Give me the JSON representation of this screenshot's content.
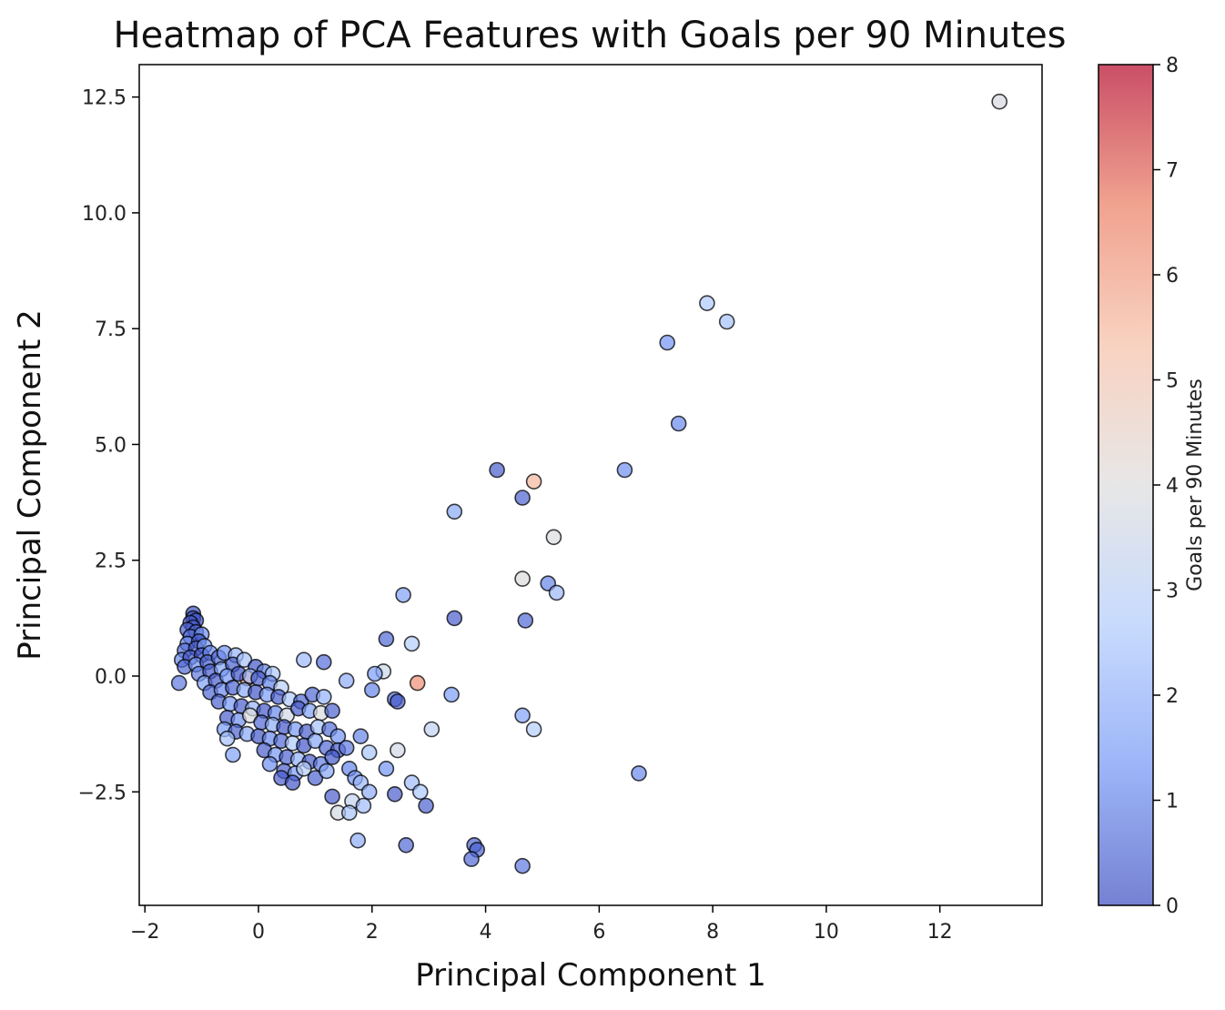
{
  "chart_data": {
    "type": "scatter",
    "title": "Heatmap of PCA Features with Goals per 90 Minutes",
    "xlabel": "Principal Component 1",
    "ylabel": "Principal Component 2",
    "xlim": [
      -2.1,
      13.8
    ],
    "ylim": [
      -4.95,
      13.2
    ],
    "xticks": [
      -2,
      0,
      2,
      4,
      6,
      8,
      10,
      12
    ],
    "xtick_labels": [
      "−2",
      "0",
      "2",
      "4",
      "6",
      "8",
      "10",
      "12"
    ],
    "yticks": [
      -2.5,
      0,
      2.5,
      5,
      7.5,
      10,
      12.5
    ],
    "ytick_labels": [
      "−2.5",
      "0.0",
      "2.5",
      "5.0",
      "7.5",
      "10.0",
      "12.5"
    ],
    "grid": false,
    "colorbar": {
      "label": "Goals per 90 Minutes",
      "range": [
        0,
        8
      ],
      "ticks": [
        0,
        1,
        2,
        3,
        4,
        5,
        6,
        7,
        8
      ],
      "colormap": "coolwarm",
      "stops": [
        "#3b4cc0",
        "#7396f5",
        "#b0cbfc",
        "#dddcdc",
        "#f6bfa6",
        "#ea7b60",
        "#b40426"
      ]
    },
    "marker": {
      "edge_color": "#000000",
      "alpha": 0.7
    },
    "points": [
      {
        "x": 13.05,
        "y": 12.4,
        "c": 3.8
      },
      {
        "x": 7.9,
        "y": 8.05,
        "c": 2.6
      },
      {
        "x": 8.25,
        "y": 7.65,
        "c": 2.4
      },
      {
        "x": 7.2,
        "y": 7.2,
        "c": 1.3
      },
      {
        "x": 7.4,
        "y": 5.45,
        "c": 1.1
      },
      {
        "x": 6.45,
        "y": 4.45,
        "c": 1.2
      },
      {
        "x": 4.85,
        "y": 4.2,
        "c": 5.5
      },
      {
        "x": 4.2,
        "y": 4.45,
        "c": 0.3
      },
      {
        "x": 4.65,
        "y": 3.85,
        "c": 0.4
      },
      {
        "x": 3.45,
        "y": 3.55,
        "c": 1.8
      },
      {
        "x": 5.2,
        "y": 3.0,
        "c": 3.9
      },
      {
        "x": 4.65,
        "y": 2.1,
        "c": 4.0
      },
      {
        "x": 5.1,
        "y": 2.0,
        "c": 1.0
      },
      {
        "x": 5.25,
        "y": 1.8,
        "c": 2.2
      },
      {
        "x": 2.55,
        "y": 1.75,
        "c": 1.6
      },
      {
        "x": 3.45,
        "y": 1.25,
        "c": 0.3
      },
      {
        "x": 4.7,
        "y": 1.2,
        "c": 0.5
      },
      {
        "x": 2.25,
        "y": 0.8,
        "c": 0.5
      },
      {
        "x": 2.7,
        "y": 0.7,
        "c": 2.8
      },
      {
        "x": 0.8,
        "y": 0.35,
        "c": 2.2
      },
      {
        "x": 1.15,
        "y": 0.3,
        "c": 0.6
      },
      {
        "x": 2.2,
        "y": 0.1,
        "c": 3.5
      },
      {
        "x": 2.05,
        "y": 0.05,
        "c": 1.5
      },
      {
        "x": 1.55,
        "y": -0.1,
        "c": 1.9
      },
      {
        "x": 2.8,
        "y": -0.15,
        "c": 6.3
      },
      {
        "x": -0.2,
        "y": -0.05,
        "c": 6.0
      },
      {
        "x": 2.0,
        "y": -0.3,
        "c": 1.0
      },
      {
        "x": 2.4,
        "y": -0.5,
        "c": 0.5
      },
      {
        "x": 2.45,
        "y": -0.55,
        "c": 0.3
      },
      {
        "x": 3.4,
        "y": -0.4,
        "c": 1.5
      },
      {
        "x": 4.65,
        "y": -0.85,
        "c": 1.6
      },
      {
        "x": 4.85,
        "y": -1.15,
        "c": 2.8
      },
      {
        "x": 3.05,
        "y": -1.15,
        "c": 3.1
      },
      {
        "x": 2.45,
        "y": -1.6,
        "c": 3.6
      },
      {
        "x": 1.8,
        "y": -1.3,
        "c": 1.0
      },
      {
        "x": 1.95,
        "y": -1.65,
        "c": 2.5
      },
      {
        "x": 2.25,
        "y": -2.0,
        "c": 1.3
      },
      {
        "x": 2.7,
        "y": -2.3,
        "c": 2.3
      },
      {
        "x": 2.85,
        "y": -2.5,
        "c": 2.6
      },
      {
        "x": 2.95,
        "y": -2.8,
        "c": 0.4
      },
      {
        "x": 2.4,
        "y": -2.55,
        "c": 0.3
      },
      {
        "x": 1.6,
        "y": -2.0,
        "c": 1.0
      },
      {
        "x": 1.7,
        "y": -2.2,
        "c": 1.2
      },
      {
        "x": 1.8,
        "y": -2.3,
        "c": 2.2
      },
      {
        "x": 1.95,
        "y": -2.5,
        "c": 1.9
      },
      {
        "x": 1.65,
        "y": -2.7,
        "c": 3.2
      },
      {
        "x": 1.85,
        "y": -2.8,
        "c": 2.3
      },
      {
        "x": 1.4,
        "y": -2.95,
        "c": 3.7
      },
      {
        "x": 1.6,
        "y": -2.95,
        "c": 2.5
      },
      {
        "x": 1.3,
        "y": -2.6,
        "c": 0.3
      },
      {
        "x": 1.75,
        "y": -3.55,
        "c": 1.9
      },
      {
        "x": 2.6,
        "y": -3.65,
        "c": 0.5
      },
      {
        "x": 3.8,
        "y": -3.65,
        "c": 0.4
      },
      {
        "x": 3.85,
        "y": -3.75,
        "c": 0.4
      },
      {
        "x": 3.75,
        "y": -3.95,
        "c": 0.5
      },
      {
        "x": 4.65,
        "y": -4.1,
        "c": 0.8
      },
      {
        "x": 6.7,
        "y": -2.1,
        "c": 1.1
      },
      {
        "x": -0.45,
        "y": -1.7,
        "c": 1.6
      },
      {
        "x": -1.4,
        "y": -0.15,
        "c": 0.8
      },
      {
        "x": -1.15,
        "y": 1.35,
        "c": 0.1
      },
      {
        "x": -1.15,
        "y": 1.25,
        "c": 0.1
      },
      {
        "x": -1.1,
        "y": 1.2,
        "c": 0.2
      },
      {
        "x": -1.2,
        "y": 1.15,
        "c": 0.2
      },
      {
        "x": -1.15,
        "y": 1.05,
        "c": 0.3
      },
      {
        "x": -1.25,
        "y": 1.0,
        "c": 0.4
      },
      {
        "x": -1.1,
        "y": 0.95,
        "c": 0.5
      },
      {
        "x": -1.2,
        "y": 0.85,
        "c": 0.6
      },
      {
        "x": -1.0,
        "y": 0.9,
        "c": 1.2
      },
      {
        "x": -1.25,
        "y": 0.7,
        "c": 1.0
      },
      {
        "x": -1.05,
        "y": 0.75,
        "c": 0.2
      },
      {
        "x": -1.3,
        "y": 0.55,
        "c": 0.6
      },
      {
        "x": -1.1,
        "y": 0.6,
        "c": 0.3
      },
      {
        "x": -0.95,
        "y": 0.65,
        "c": 1.4
      },
      {
        "x": -1.35,
        "y": 0.35,
        "c": 1.0
      },
      {
        "x": -1.2,
        "y": 0.4,
        "c": 0.3
      },
      {
        "x": -1.0,
        "y": 0.45,
        "c": 0.2
      },
      {
        "x": -0.85,
        "y": 0.5,
        "c": 1.1
      },
      {
        "x": -1.3,
        "y": 0.2,
        "c": 0.5
      },
      {
        "x": -1.1,
        "y": 0.25,
        "c": 1.3
      },
      {
        "x": -0.9,
        "y": 0.3,
        "c": 0.4
      },
      {
        "x": -0.7,
        "y": 0.4,
        "c": 0.5
      },
      {
        "x": -0.6,
        "y": 0.5,
        "c": 1.3
      },
      {
        "x": -0.4,
        "y": 0.45,
        "c": 2.1
      },
      {
        "x": -1.05,
        "y": 0.05,
        "c": 0.8
      },
      {
        "x": -0.85,
        "y": 0.1,
        "c": 0.3
      },
      {
        "x": -0.65,
        "y": 0.15,
        "c": 1.6
      },
      {
        "x": -0.45,
        "y": 0.25,
        "c": 0.4
      },
      {
        "x": -0.25,
        "y": 0.35,
        "c": 2.4
      },
      {
        "x": -0.05,
        "y": 0.2,
        "c": 0.2
      },
      {
        "x": 0.1,
        "y": 0.1,
        "c": 1.0
      },
      {
        "x": 0.25,
        "y": 0.05,
        "c": 2.6
      },
      {
        "x": -0.95,
        "y": -0.15,
        "c": 1.6
      },
      {
        "x": -0.75,
        "y": -0.1,
        "c": 0.3
      },
      {
        "x": -0.55,
        "y": 0.0,
        "c": 1.4
      },
      {
        "x": -0.35,
        "y": 0.05,
        "c": 0.1
      },
      {
        "x": -0.15,
        "y": 0.0,
        "c": 2.3
      },
      {
        "x": 0.0,
        "y": -0.05,
        "c": 0.3
      },
      {
        "x": 0.2,
        "y": -0.15,
        "c": 1.0
      },
      {
        "x": 0.4,
        "y": -0.25,
        "c": 2.9
      },
      {
        "x": -0.85,
        "y": -0.35,
        "c": 0.5
      },
      {
        "x": -0.65,
        "y": -0.3,
        "c": 1.1
      },
      {
        "x": -0.45,
        "y": -0.25,
        "c": 0.4
      },
      {
        "x": -0.25,
        "y": -0.3,
        "c": 1.8
      },
      {
        "x": -0.05,
        "y": -0.35,
        "c": 0.2
      },
      {
        "x": 0.15,
        "y": -0.4,
        "c": 1.5
      },
      {
        "x": 0.35,
        "y": -0.45,
        "c": 0.3
      },
      {
        "x": 0.55,
        "y": -0.5,
        "c": 2.6
      },
      {
        "x": 0.75,
        "y": -0.55,
        "c": 0.5
      },
      {
        "x": 0.95,
        "y": -0.4,
        "c": 0.5
      },
      {
        "x": 1.15,
        "y": -0.45,
        "c": 2.0
      },
      {
        "x": -0.7,
        "y": -0.55,
        "c": 0.4
      },
      {
        "x": -0.5,
        "y": -0.6,
        "c": 1.4
      },
      {
        "x": -0.3,
        "y": -0.65,
        "c": 0.3
      },
      {
        "x": -0.1,
        "y": -0.7,
        "c": 2.1
      },
      {
        "x": 0.1,
        "y": -0.75,
        "c": 0.2
      },
      {
        "x": 0.3,
        "y": -0.8,
        "c": 1.1
      },
      {
        "x": 0.5,
        "y": -0.85,
        "c": 3.6
      },
      {
        "x": 0.7,
        "y": -0.7,
        "c": 0.3
      },
      {
        "x": 0.9,
        "y": -0.75,
        "c": 1.6
      },
      {
        "x": 1.1,
        "y": -0.8,
        "c": 3.9
      },
      {
        "x": 1.3,
        "y": -0.75,
        "c": 0.4
      },
      {
        "x": -0.55,
        "y": -0.9,
        "c": 0.3
      },
      {
        "x": -0.35,
        "y": -0.95,
        "c": 1.2
      },
      {
        "x": -0.15,
        "y": -0.85,
        "c": 3.9
      },
      {
        "x": 0.05,
        "y": -1.0,
        "c": 0.5
      },
      {
        "x": 0.25,
        "y": -1.05,
        "c": 1.9
      },
      {
        "x": 0.45,
        "y": -1.1,
        "c": 0.2
      },
      {
        "x": 0.65,
        "y": -1.15,
        "c": 1.4
      },
      {
        "x": 0.85,
        "y": -1.2,
        "c": 0.3
      },
      {
        "x": 1.05,
        "y": -1.1,
        "c": 2.4
      },
      {
        "x": 1.25,
        "y": -1.15,
        "c": 0.6
      },
      {
        "x": 1.4,
        "y": -1.3,
        "c": 1.3
      },
      {
        "x": -0.6,
        "y": -1.15,
        "c": 1.5
      },
      {
        "x": -0.4,
        "y": -1.2,
        "c": 0.4
      },
      {
        "x": -0.2,
        "y": -1.25,
        "c": 1.8
      },
      {
        "x": 0.0,
        "y": -1.3,
        "c": 0.2
      },
      {
        "x": 0.2,
        "y": -1.35,
        "c": 1.1
      },
      {
        "x": 0.4,
        "y": -1.4,
        "c": 0.5
      },
      {
        "x": 0.6,
        "y": -1.45,
        "c": 2.7
      },
      {
        "x": 0.8,
        "y": -1.5,
        "c": 0.2
      },
      {
        "x": 1.0,
        "y": -1.4,
        "c": 1.7
      },
      {
        "x": 1.2,
        "y": -1.55,
        "c": 0.5
      },
      {
        "x": 1.4,
        "y": -1.6,
        "c": 0.3
      },
      {
        "x": 1.55,
        "y": -1.55,
        "c": 0.8
      },
      {
        "x": -0.55,
        "y": -1.35,
        "c": 2.4
      },
      {
        "x": 0.1,
        "y": -1.6,
        "c": 0.3
      },
      {
        "x": 0.3,
        "y": -1.7,
        "c": 1.4
      },
      {
        "x": 0.5,
        "y": -1.75,
        "c": 0.4
      },
      {
        "x": 0.7,
        "y": -1.8,
        "c": 2.0
      },
      {
        "x": 0.9,
        "y": -1.85,
        "c": 0.3
      },
      {
        "x": 1.1,
        "y": -1.9,
        "c": 0.9
      },
      {
        "x": 1.3,
        "y": -1.75,
        "c": 0.2
      },
      {
        "x": 0.2,
        "y": -1.9,
        "c": 1.2
      },
      {
        "x": 0.45,
        "y": -2.05,
        "c": 0.3
      },
      {
        "x": 0.65,
        "y": -2.1,
        "c": 1.5
      },
      {
        "x": 1.0,
        "y": -2.2,
        "c": 0.4
      },
      {
        "x": 0.4,
        "y": -2.2,
        "c": 0.3
      },
      {
        "x": 0.6,
        "y": -2.3,
        "c": 0.2
      },
      {
        "x": 1.2,
        "y": -2.05,
        "c": 1.7
      },
      {
        "x": 0.8,
        "y": -2.0,
        "c": 2.9
      }
    ]
  }
}
